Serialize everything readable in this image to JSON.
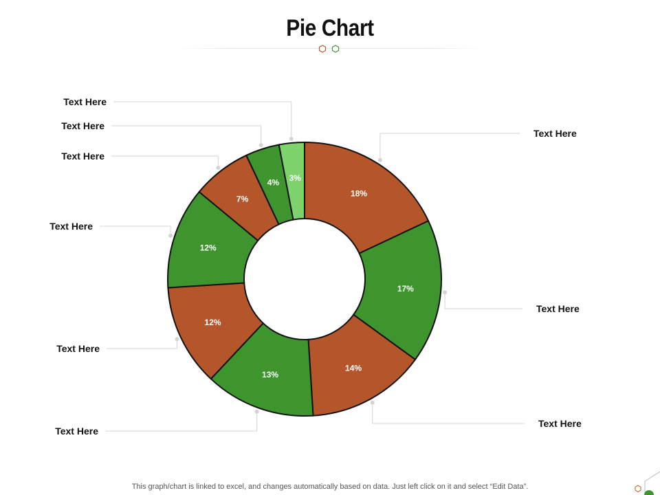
{
  "page": {
    "title": "Pie Chart",
    "footer": "This graph/chart is linked to excel, and changes automatically  based on data. Just left click on it and select “Edit Data”."
  },
  "colors": {
    "orange": "#b5562a",
    "green": "#3e952d",
    "light_green": "#7fd36c",
    "hex_orange": "#b5562a",
    "hex_green": "#3e952d"
  },
  "chart_data": {
    "type": "pie",
    "donut": true,
    "title": "Pie Chart",
    "categories": [
      "Text Here",
      "Text Here",
      "Text Here",
      "Text Here",
      "Text Here",
      "Text Here",
      "Text Here",
      "Text Here",
      "Text Here"
    ],
    "values": [
      18,
      17,
      14,
      13,
      12,
      12,
      7,
      4,
      3
    ],
    "labels": [
      "18%",
      "17%",
      "14%",
      "13%",
      "12%",
      "12%",
      "7%",
      "4%",
      "3%"
    ],
    "slice_colors": [
      "#b5562a",
      "#3e952d",
      "#b5562a",
      "#3e952d",
      "#b5562a",
      "#3e952d",
      "#b5562a",
      "#3e952d",
      "#7fd36c"
    ],
    "legend": "callouts"
  }
}
